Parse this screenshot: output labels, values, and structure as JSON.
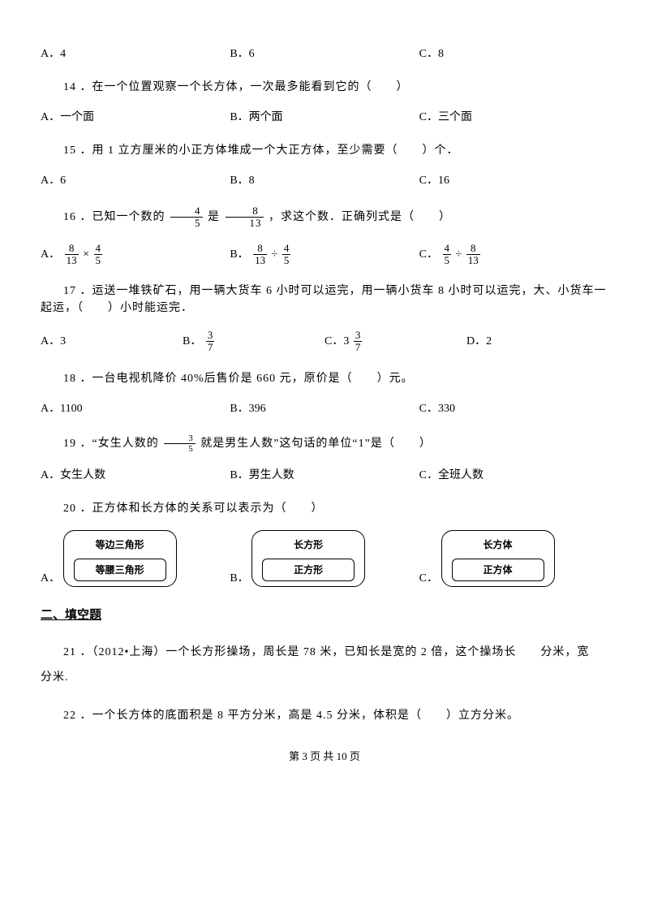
{
  "q13": {
    "A": "A．4",
    "B": "B．6",
    "C": "C．8"
  },
  "q14": {
    "text": "14 ．在一个位置观察一个长方体，一次最多能看到它的（　　）",
    "A": "A．一个面",
    "B": "B．两个面",
    "C": "C．三个面"
  },
  "q15": {
    "text": "15 ．用 1 立方厘米的小正方体堆成一个大正方体，至少需要（　　）个．",
    "A": "A．6",
    "B": "B．8",
    "C": "C．16"
  },
  "q16": {
    "pre": "16 ．已知一个数的",
    "mid": "是",
    "post": "，求这个数．正确列式是（　　）",
    "f1n": "4",
    "f1d": "5",
    "f2n": "8",
    "f2d": "13",
    "A_pre": "A．",
    "A_n1": "8",
    "A_d1": "13",
    "A_op": "×",
    "A_n2": "4",
    "A_d2": "5",
    "B_pre": "B．",
    "B_n1": "8",
    "B_d1": "13",
    "B_op": "÷",
    "B_n2": "4",
    "B_d2": "5",
    "C_pre": "C．",
    "C_n1": "4",
    "C_d1": "5",
    "C_op": "÷",
    "C_n2": "8",
    "C_d2": "13"
  },
  "q17": {
    "text": "17 ．运送一堆铁矿石，用一辆大货车 6 小时可以运完，用一辆小货车 8 小时可以运完，大、小货车一起运，（　　）小时能运完．",
    "A": "A．3",
    "B_pre": "B．",
    "B_n": "3",
    "B_d": "7",
    "C_pre": "C．3",
    "C_n": "3",
    "C_d": "7",
    "D": "D．2"
  },
  "q18": {
    "text": "18 ．一台电视机降价 40%后售价是 660 元，原价是（　　）元。",
    "A": "A．1100",
    "B": "B．396",
    "C": "C．330"
  },
  "q19": {
    "pre": "19 ．“女生人数的",
    "n": "3",
    "d": "5",
    "post": "就是男生人数”这句话的单位“1”是（　　）",
    "A": "A．女生人数",
    "B": "B．男生人数",
    "C": "C．全班人数"
  },
  "q20": {
    "text": "20 ．正方体和长方体的关系可以表示为（　　）",
    "A_pre": "A．",
    "A_outer": "等边三角形",
    "A_inner": "等腰三角形",
    "B_pre": "B．",
    "B_outer": "长方形",
    "B_inner": "正方形",
    "C_pre": "C．",
    "C_outer": "长方体",
    "C_inner": "正方体"
  },
  "section2": "二、填空题",
  "q21": "21 ．（2012•上海）一个长方形操场，周长是 78 米，已知长是宽的 2 倍，这个操场长　　分米，宽　　分米.",
  "q22": "22 ．一个长方体的底面积是 8 平方分米，高是 4.5 分米，体积是（　　）立方分米。",
  "footer": "第 3 页 共 10 页"
}
